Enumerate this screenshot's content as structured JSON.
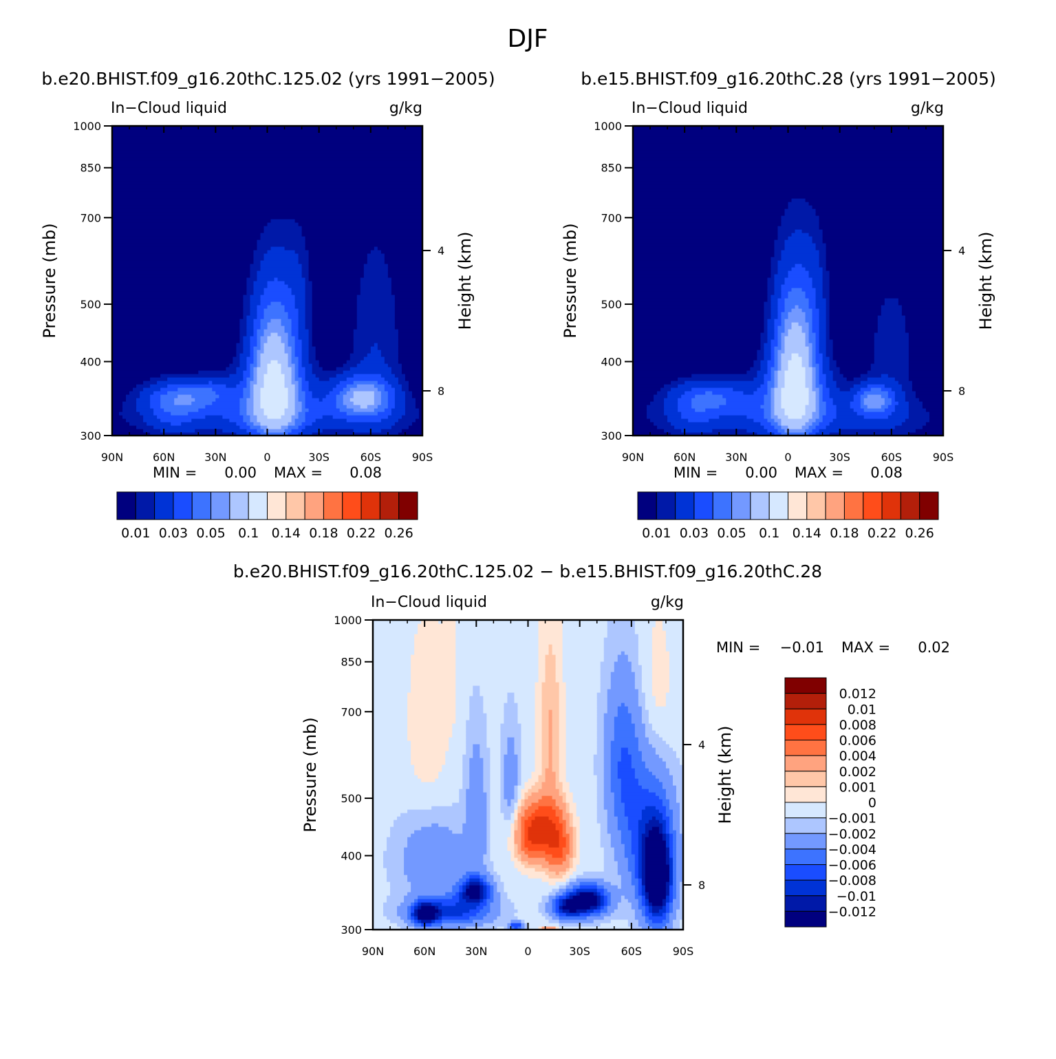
{
  "page": {
    "title": "DJF"
  },
  "palettes": {
    "full": [
      "#00007f",
      "#0019a8",
      "#0033d6",
      "#1a4dff",
      "#3d73ff",
      "#7399ff",
      "#adc6ff",
      "#d6e8ff",
      "#ffe6d6",
      "#ffc7a8",
      "#ffa37f",
      "#ff7342",
      "#ff4d1a",
      "#e0330a",
      "#b31f0a",
      "#800000"
    ],
    "diff": [
      "#800000",
      "#b31f0a",
      "#e0330a",
      "#ff4d1a",
      "#ff7342",
      "#ffa37f",
      "#ffc7a8",
      "#ffe6d6",
      "#d6e8ff",
      "#adc6ff",
      "#7399ff",
      "#3d73ff",
      "#1a4dff",
      "#0033d6",
      "#0019a8",
      "#00007f"
    ]
  },
  "chart_data": [
    {
      "type": "heatmap",
      "title": "b.e20.BHIST.f09_g16.20thC.125.02 (yrs 1991-2005)",
      "title_display": "b.e20.BHIST.f09_g16.20thC.125.02 (yrs 1991−2005)",
      "variable": "In−Cloud liquid",
      "units": "g/kg",
      "ylabel": "Pressure (mb)",
      "ylabel_right": "Height (km)",
      "x_ticks": [
        "90N",
        "60N",
        "30N",
        "0",
        "30S",
        "60S",
        "90S"
      ],
      "xlim": [
        -90,
        90
      ],
      "y_ticks": [
        300,
        400,
        500,
        700,
        850,
        1000
      ],
      "ylim": [
        1000,
        300
      ],
      "y_right_ticks": [
        "8",
        "4"
      ],
      "min_label": "MIN =",
      "min_value": "0.00",
      "max_label": "MAX =",
      "max_value": "0.08",
      "colorbar_labels": [
        "0.01",
        "0.03",
        "0.05",
        "0.1",
        "0.14",
        "0.18",
        "0.22",
        "0.26"
      ],
      "levels": [
        0.005,
        0.01,
        0.02,
        0.03,
        0.04,
        0.05,
        0.07,
        0.1,
        0.12,
        0.14,
        0.16,
        0.18,
        0.2,
        0.22,
        0.24,
        0.26
      ],
      "features": [
        {
          "lat": -4,
          "p": 780,
          "w": 13,
          "h": 220,
          "amp": 0.062
        },
        {
          "lat": -4,
          "p": 860,
          "w": 22,
          "h": 110,
          "amp": 0.028
        },
        {
          "lat": -18,
          "p": 580,
          "w": 8,
          "h": 150,
          "amp": 0.008
        },
        {
          "lat": 48,
          "p": 860,
          "w": 22,
          "h": 55,
          "amp": 0.034
        },
        {
          "lat": 30,
          "p": 830,
          "w": 10,
          "h": 40,
          "amp": 0.01
        },
        {
          "lat": -55,
          "p": 860,
          "w": 17,
          "h": 65,
          "amp": 0.048
        },
        {
          "lat": -63,
          "p": 730,
          "w": 15,
          "h": 300,
          "amp": 0.01
        },
        {
          "lat": 55,
          "p": 930,
          "w": 13,
          "h": 70,
          "amp": 0.012
        },
        {
          "lat": 0,
          "p": 930,
          "w": 75,
          "h": 70,
          "amp": 0.016
        }
      ]
    },
    {
      "type": "heatmap",
      "title": "b.e15.BHIST.f09_g16.20thC.28 (yrs 1991-2005)",
      "title_display": "b.e15.BHIST.f09_g16.20thC.28 (yrs 1991−2005)",
      "variable": "In−Cloud liquid",
      "units": "g/kg",
      "ylabel": "Pressure (mb)",
      "ylabel_right": "Height (km)",
      "x_ticks": [
        "90N",
        "60N",
        "30N",
        "0",
        "30S",
        "60S",
        "90S"
      ],
      "xlim": [
        -90,
        90
      ],
      "y_ticks": [
        300,
        400,
        500,
        700,
        850,
        1000
      ],
      "ylim": [
        1000,
        300
      ],
      "y_right_ticks": [
        "8",
        "4"
      ],
      "min_label": "MIN =",
      "min_value": "0.00",
      "max_label": "MAX =",
      "max_value": "0.08",
      "colorbar_labels": [
        "0.01",
        "0.03",
        "0.05",
        "0.1",
        "0.14",
        "0.18",
        "0.22",
        "0.26"
      ],
      "levels": [
        0.005,
        0.01,
        0.02,
        0.03,
        0.04,
        0.05,
        0.07,
        0.1,
        0.12,
        0.14,
        0.16,
        0.18,
        0.2,
        0.22,
        0.24,
        0.26
      ],
      "features": [
        {
          "lat": -4,
          "p": 770,
          "w": 12,
          "h": 230,
          "amp": 0.066
        },
        {
          "lat": -4,
          "p": 860,
          "w": 22,
          "h": 110,
          "amp": 0.028
        },
        {
          "lat": -16,
          "p": 580,
          "w": 8,
          "h": 150,
          "amp": 0.008
        },
        {
          "lat": 45,
          "p": 860,
          "w": 22,
          "h": 55,
          "amp": 0.028
        },
        {
          "lat": -50,
          "p": 870,
          "w": 11,
          "h": 50,
          "amp": 0.04
        },
        {
          "lat": -60,
          "p": 760,
          "w": 15,
          "h": 260,
          "amp": 0.008
        },
        {
          "lat": 55,
          "p": 930,
          "w": 13,
          "h": 70,
          "amp": 0.011
        },
        {
          "lat": 0,
          "p": 930,
          "w": 75,
          "h": 70,
          "amp": 0.015
        }
      ]
    },
    {
      "type": "heatmap",
      "title": "b.e20.BHIST.f09_g16.20thC.125.02 - b.e15.BHIST.f09_g16.20thC.28",
      "title_display": "b.e20.BHIST.f09_g16.20thC.125.02 − b.e15.BHIST.f09_g16.20thC.28",
      "variable": "In−Cloud liquid",
      "units": "g/kg",
      "ylabel": "Pressure (mb)",
      "ylabel_right": "Height (km)",
      "x_ticks": [
        "90N",
        "60N",
        "30N",
        "0",
        "30S",
        "60S",
        "90S"
      ],
      "xlim": [
        -90,
        90
      ],
      "y_ticks": [
        300,
        400,
        500,
        700,
        850,
        1000
      ],
      "ylim": [
        1000,
        300
      ],
      "y_right_ticks": [
        "8",
        "4"
      ],
      "min_label": "MIN =",
      "min_value": "−0.01",
      "max_label": "MAX =",
      "max_value": "0.02",
      "colorbar_labels": [
        "0.012",
        "0.01",
        "0.008",
        "0.006",
        "0.004",
        "0.002",
        "0.001",
        "0",
        "−0.001",
        "−0.002",
        "−0.004",
        "−0.006",
        "−0.008",
        "−0.01",
        "−0.012"
      ],
      "levels": [
        -0.012,
        -0.01,
        -0.008,
        -0.006,
        -0.004,
        -0.002,
        -0.001,
        0,
        0.001,
        0.002,
        0.004,
        0.006,
        0.008,
        0.01,
        0.012
      ],
      "base": 0.0006,
      "features": [
        {
          "lat": -3,
          "p": 700,
          "w": 10,
          "h": 70,
          "amp": -0.008
        },
        {
          "lat": -18,
          "p": 720,
          "w": 8,
          "h": 80,
          "amp": -0.007
        },
        {
          "lat": -8,
          "p": 640,
          "w": 12,
          "h": 60,
          "amp": -0.004
        },
        {
          "lat": -13,
          "p": 480,
          "w": 7,
          "h": 200,
          "amp": -0.0028
        },
        {
          "lat": 58,
          "p": 440,
          "w": 12,
          "h": 160,
          "amp": -0.0015
        },
        {
          "lat": -75,
          "p": 400,
          "w": 10,
          "h": 130,
          "amp": -0.0012
        },
        {
          "lat": 45,
          "p": 360,
          "w": 4,
          "h": 80,
          "amp": -0.0012
        },
        {
          "lat": 31,
          "p": 860,
          "w": 9,
          "h": 45,
          "amp": 0.012
        },
        {
          "lat": 60,
          "p": 940,
          "w": 7,
          "h": 40,
          "amp": 0.012
        },
        {
          "lat": 45,
          "p": 930,
          "w": 22,
          "h": 50,
          "amp": 0.008
        },
        {
          "lat": -35,
          "p": 890,
          "w": 11,
          "h": 50,
          "amp": 0.014
        },
        {
          "lat": -23,
          "p": 915,
          "w": 9,
          "h": 40,
          "amp": 0.01
        },
        {
          "lat": -75,
          "p": 820,
          "w": 8,
          "h": 140,
          "amp": 0.016
        },
        {
          "lat": -70,
          "p": 700,
          "w": 14,
          "h": 180,
          "amp": 0.007
        },
        {
          "lat": -55,
          "p": 520,
          "w": 10,
          "h": 160,
          "amp": 0.005
        },
        {
          "lat": 30,
          "p": 640,
          "w": 6,
          "h": 180,
          "amp": 0.003
        },
        {
          "lat": 10,
          "p": 560,
          "w": 5,
          "h": 120,
          "amp": 0.0025
        },
        {
          "lat": 55,
          "p": 760,
          "w": 20,
          "h": 120,
          "amp": 0.003
        },
        {
          "lat": 7,
          "p": 985,
          "w": 4,
          "h": 15,
          "amp": 0.008
        },
        {
          "lat": -12,
          "p": 995,
          "w": 5,
          "h": 10,
          "amp": -0.004
        }
      ]
    }
  ]
}
